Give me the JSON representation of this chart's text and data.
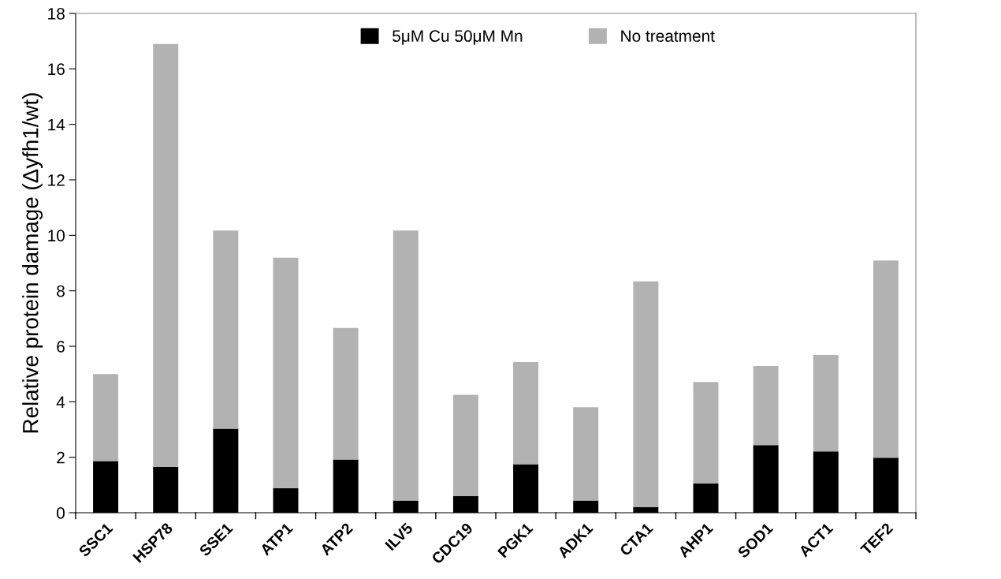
{
  "chart_data": {
    "type": "bar",
    "stacked": true,
    "ylabel": "Relative protein damage (Δyfh1/wt)",
    "categories": [
      "SSC1",
      "HSP78",
      "SSE1",
      "ATP1",
      "ATP2",
      "ILV5",
      "CDC19",
      "PGK1",
      "ADK1",
      "CTA1",
      "AHP1",
      "SOD1",
      "ACT1",
      "TEF2"
    ],
    "series": [
      {
        "name": "5μM Cu 50μM Mn",
        "color": "#000000",
        "values": [
          1.86,
          1.65,
          3.03,
          0.89,
          1.92,
          0.44,
          0.6,
          1.75,
          0.44,
          0.2,
          1.05,
          2.44,
          2.21,
          1.98
        ]
      },
      {
        "name": "No treatment",
        "color": "#b2b2b2",
        "values": [
          3.14,
          15.25,
          7.14,
          8.3,
          4.74,
          9.73,
          3.65,
          3.68,
          3.36,
          8.14,
          3.66,
          2.85,
          3.48,
          7.11
        ]
      }
    ],
    "ylim": [
      0,
      18
    ],
    "yticks": [
      0,
      2,
      4,
      6,
      8,
      10,
      12,
      14,
      16,
      18
    ],
    "grid": false,
    "legend": "top"
  }
}
